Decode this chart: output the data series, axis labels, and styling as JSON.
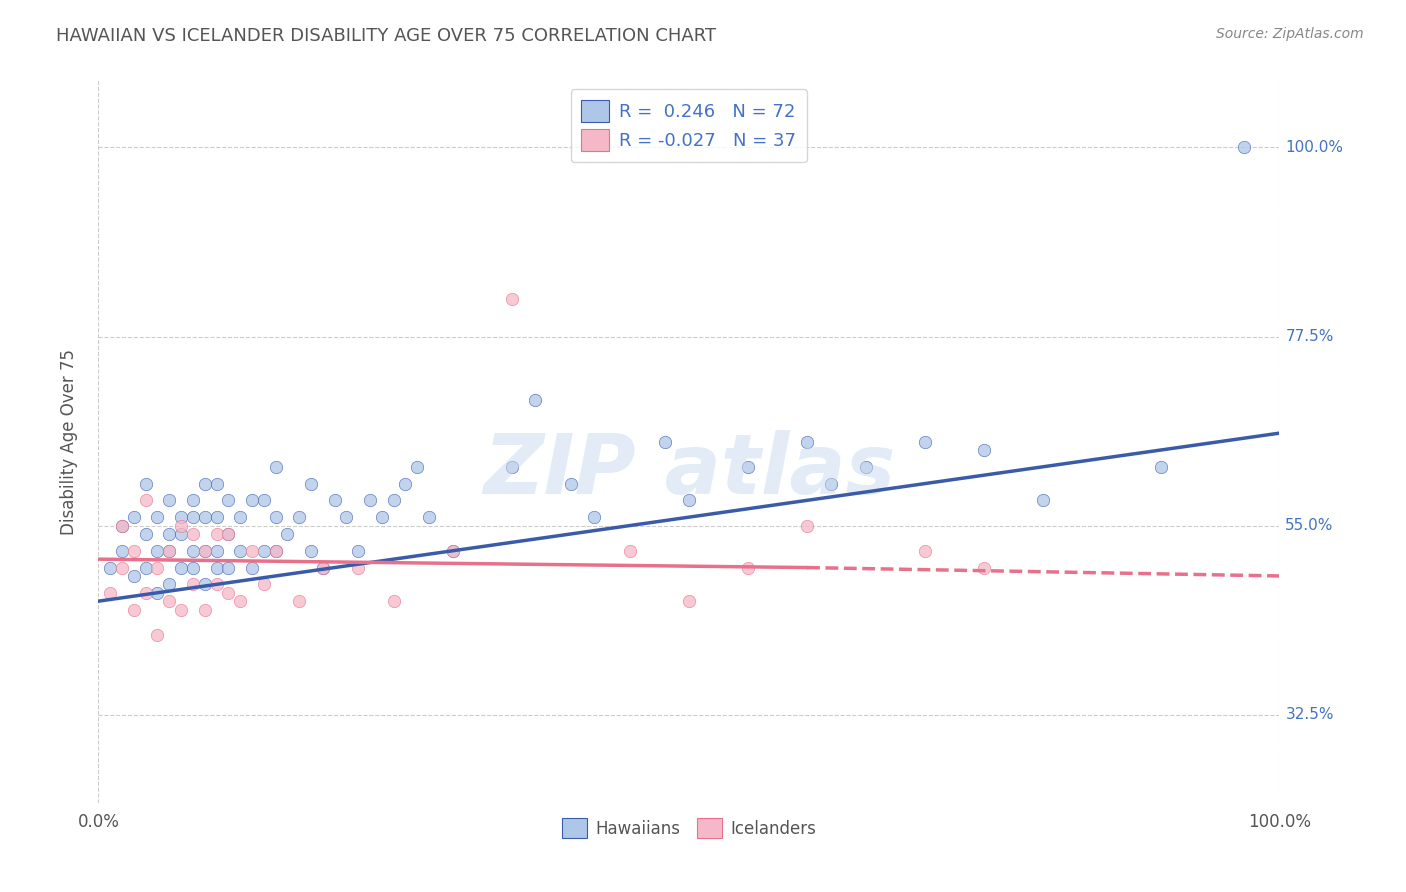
{
  "title": "HAWAIIAN VS ICELANDER DISABILITY AGE OVER 75 CORRELATION CHART",
  "source": "Source: ZipAtlas.com",
  "ylabel": "Disability Age Over 75",
  "xlim": [
    0,
    100
  ],
  "ylim": [
    22,
    108
  ],
  "yticks": [
    32.5,
    55.0,
    77.5,
    100.0
  ],
  "ytick_labels": [
    "32.5%",
    "55.0%",
    "77.5%",
    "100.0%"
  ],
  "hawaiians_R": "0.246",
  "hawaiians_N": "72",
  "icelanders_R": "-0.027",
  "icelanders_N": "37",
  "hawaiians_color": "#aec6e8",
  "icelanders_color": "#f5b8c8",
  "line_hawaiians_color": "#3a5ca8",
  "line_icelanders_color": "#e8708a",
  "background_color": "#ffffff",
  "grid_color": "#cccccc",
  "legend_text_color": "#4472c4",
  "title_color": "#555555",
  "source_color": "#888888",
  "hawaiians_x": [
    1,
    2,
    2,
    3,
    3,
    4,
    4,
    4,
    5,
    5,
    5,
    6,
    6,
    6,
    6,
    7,
    7,
    7,
    8,
    8,
    8,
    8,
    9,
    9,
    9,
    9,
    10,
    10,
    10,
    10,
    11,
    11,
    11,
    12,
    12,
    13,
    13,
    14,
    14,
    15,
    15,
    15,
    16,
    17,
    18,
    18,
    19,
    20,
    21,
    22,
    23,
    24,
    25,
    26,
    27,
    28,
    30,
    35,
    37,
    40,
    42,
    48,
    50,
    55,
    60,
    62,
    65,
    70,
    75,
    80,
    90,
    97
  ],
  "hawaiians_y": [
    50,
    52,
    55,
    49,
    56,
    50,
    54,
    60,
    47,
    52,
    56,
    48,
    52,
    54,
    58,
    50,
    54,
    56,
    50,
    52,
    56,
    58,
    48,
    52,
    56,
    60,
    50,
    52,
    56,
    60,
    50,
    54,
    58,
    52,
    56,
    50,
    58,
    52,
    58,
    52,
    56,
    62,
    54,
    56,
    52,
    60,
    50,
    58,
    56,
    52,
    58,
    56,
    58,
    60,
    62,
    56,
    52,
    62,
    70,
    60,
    56,
    65,
    58,
    62,
    65,
    60,
    62,
    65,
    64,
    58,
    62,
    100
  ],
  "icelanders_x": [
    1,
    2,
    2,
    3,
    3,
    4,
    4,
    5,
    5,
    6,
    6,
    7,
    7,
    8,
    8,
    9,
    9,
    10,
    10,
    11,
    11,
    12,
    13,
    14,
    15,
    17,
    19,
    22,
    25,
    30,
    35,
    45,
    50,
    55,
    60,
    70,
    75
  ],
  "icelanders_y": [
    47,
    50,
    55,
    45,
    52,
    47,
    58,
    42,
    50,
    46,
    52,
    45,
    55,
    48,
    54,
    45,
    52,
    48,
    54,
    47,
    54,
    46,
    52,
    48,
    52,
    46,
    50,
    50,
    46,
    52,
    82,
    52,
    46,
    50,
    55,
    52,
    50
  ],
  "haw_line_x0": 0,
  "haw_line_y0": 46,
  "haw_line_x1": 100,
  "haw_line_y1": 66,
  "ice_line_solid_x0": 0,
  "ice_line_solid_y0": 51,
  "ice_line_solid_x1": 60,
  "ice_line_solid_y1": 50,
  "ice_line_dash_x0": 60,
  "ice_line_dash_y0": 50,
  "ice_line_dash_x1": 100,
  "ice_line_dash_y1": 49
}
